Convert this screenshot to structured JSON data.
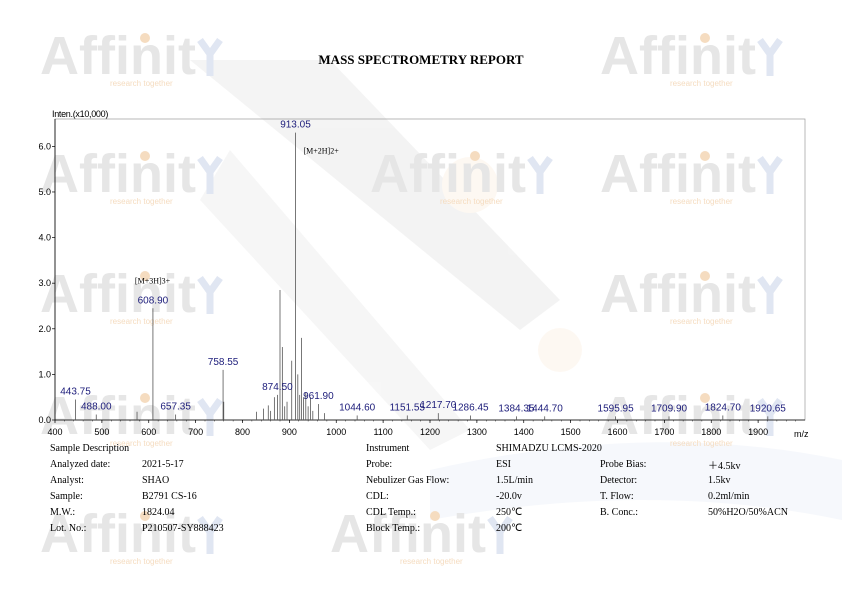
{
  "report_title": "MASS SPECTROMETRY REPORT",
  "watermark": {
    "brand": "Affinit",
    "tagline": "research together",
    "color": "#e6e6e6",
    "accent": "#f5dcc0"
  },
  "chart_data": {
    "type": "bar",
    "ylabel": "Inten.(x10,000)",
    "xlabel": "m/z",
    "xlim": [
      400,
      2000
    ],
    "ylim": [
      0,
      6.6
    ],
    "xticks": [
      400,
      500,
      600,
      700,
      800,
      900,
      1000,
      1100,
      1200,
      1300,
      1400,
      1500,
      1600,
      1700,
      1800,
      1900
    ],
    "yticks": [
      0.0,
      1.0,
      2.0,
      3.0,
      4.0,
      5.0,
      6.0
    ],
    "peaks": [
      {
        "mz": 443.75,
        "i": 0.45
      },
      {
        "mz": 488.0,
        "i": 0.12
      },
      {
        "mz": 575.0,
        "i": 0.18
      },
      {
        "mz": 608.9,
        "i": 2.45
      },
      {
        "mz": 657.35,
        "i": 0.12
      },
      {
        "mz": 758.55,
        "i": 1.1
      },
      {
        "mz": 760.0,
        "i": 0.4
      },
      {
        "mz": 830.0,
        "i": 0.18
      },
      {
        "mz": 845.0,
        "i": 0.25
      },
      {
        "mz": 855.0,
        "i": 0.32
      },
      {
        "mz": 860.0,
        "i": 0.2
      },
      {
        "mz": 868.0,
        "i": 0.5
      },
      {
        "mz": 874.5,
        "i": 0.55
      },
      {
        "mz": 880.0,
        "i": 2.85
      },
      {
        "mz": 885.0,
        "i": 1.6
      },
      {
        "mz": 890.0,
        "i": 0.3
      },
      {
        "mz": 895.0,
        "i": 0.4
      },
      {
        "mz": 905.0,
        "i": 1.3
      },
      {
        "mz": 913.05,
        "i": 6.3
      },
      {
        "mz": 918.0,
        "i": 1.0
      },
      {
        "mz": 922.0,
        "i": 0.55
      },
      {
        "mz": 926.0,
        "i": 1.8
      },
      {
        "mz": 930.0,
        "i": 0.5
      },
      {
        "mz": 935.0,
        "i": 0.6
      },
      {
        "mz": 940.0,
        "i": 0.3
      },
      {
        "mz": 945.0,
        "i": 0.5
      },
      {
        "mz": 950.0,
        "i": 0.2
      },
      {
        "mz": 961.9,
        "i": 0.35
      },
      {
        "mz": 975.0,
        "i": 0.15
      },
      {
        "mz": 1044.6,
        "i": 0.1
      },
      {
        "mz": 1151.55,
        "i": 0.1
      },
      {
        "mz": 1217.7,
        "i": 0.15
      },
      {
        "mz": 1286.45,
        "i": 0.1
      },
      {
        "mz": 1384.35,
        "i": 0.08
      },
      {
        "mz": 1444.7,
        "i": 0.08
      },
      {
        "mz": 1595.95,
        "i": 0.08
      },
      {
        "mz": 1709.9,
        "i": 0.08
      },
      {
        "mz": 1824.7,
        "i": 0.1
      },
      {
        "mz": 1920.65,
        "i": 0.08
      }
    ],
    "labels": [
      {
        "text": "443.75",
        "mz": 443.75,
        "i": 0.45
      },
      {
        "text": "488.00",
        "mz": 488.0,
        "i": 0.12
      },
      {
        "text": "608.90",
        "mz": 608.9,
        "i": 2.45
      },
      {
        "text": "657.35",
        "mz": 657.35,
        "i": 0.12
      },
      {
        "text": "758.55",
        "mz": 758.55,
        "i": 1.1
      },
      {
        "text": "874.50",
        "mz": 874.5,
        "i": 0.55
      },
      {
        "text": "913.05",
        "mz": 913.05,
        "i": 6.3
      },
      {
        "text": "961.90",
        "mz": 961.9,
        "i": 0.35
      },
      {
        "text": "1044.60",
        "mz": 1044.6,
        "i": 0.1
      },
      {
        "text": "1151.55",
        "mz": 1151.55,
        "i": 0.1
      },
      {
        "text": "1217.70",
        "mz": 1217.7,
        "i": 0.15
      },
      {
        "text": "1286.45",
        "mz": 1286.45,
        "i": 0.1
      },
      {
        "text": "1384.35",
        "mz": 1384.35,
        "i": 0.08
      },
      {
        "text": "1444.70",
        "mz": 1444.7,
        "i": 0.08
      },
      {
        "text": "1595.95",
        "mz": 1595.95,
        "i": 0.08
      },
      {
        "text": "1709.90",
        "mz": 1709.9,
        "i": 0.08
      },
      {
        "text": "1824.70",
        "mz": 1824.7,
        "i": 0.1
      },
      {
        "text": "1920.65",
        "mz": 1920.65,
        "i": 0.08
      }
    ],
    "annotations": [
      {
        "text": "[M+2H]2+",
        "mz": 913.05,
        "i": 6.3
      },
      {
        "text": "[M+3H]3+",
        "mz": 608.9,
        "i": 2.45
      }
    ]
  },
  "sample": {
    "heading": "Sample Description",
    "rows": [
      {
        "k": "Analyzed date:",
        "v": "2021-5-17"
      },
      {
        "k": "Analyst:",
        "v": "SHAO"
      },
      {
        "k": "Sample:",
        "v": "B2791 CS-16"
      },
      {
        "k": "M.W.:",
        "v": "1824.04"
      },
      {
        "k": "Lot. No.:",
        "v": "P210507-SY888423"
      }
    ]
  },
  "instrument": {
    "heading": "Instrument",
    "model": "SHIMADZU LCMS-2020",
    "rows": [
      {
        "k": "Probe:",
        "v": "ESI",
        "k2": "Probe Bias:",
        "v2": "＋4.5kv"
      },
      {
        "k": "Nebulizer Gas Flow:",
        "v": "1.5L/min",
        "k2": "Detector:",
        "v2": "1.5kv"
      },
      {
        "k": "CDL:",
        "v": "-20.0v",
        "k2": "T. Flow:",
        "v2": "0.2ml/min"
      },
      {
        "k": "CDL Temp.:",
        "v": "250℃",
        "k2": "B. Conc.:",
        "v2": "50%H2O/50%ACN"
      },
      {
        "k": "Block Temp.:",
        "v": "200℃",
        "k2": "",
        "v2": ""
      }
    ]
  }
}
